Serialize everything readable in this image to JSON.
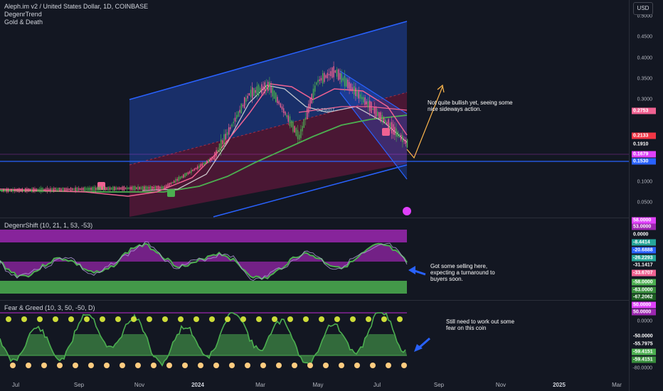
{
  "legend": {
    "symbol": "Aleph.im v2 / United States Dollar, 1D, COINBASE",
    "indicator1": "DegenrTrend",
    "indicator2": "Gold & Death",
    "pane2_title": "DegenrShift (10, 21, 1, 53, -53)",
    "pane3_title": "Fear & Greed (10, 3, 50, -50, D)"
  },
  "currency_button": "USD",
  "price_ticks": [
    "0.5000",
    "0.4500",
    "0.4000",
    "0.3500",
    "0.3000",
    "0.1000",
    "0.0500"
  ],
  "price_labels": [
    {
      "text": "0.2753",
      "color": "#f06292",
      "fg": "#ffffff"
    },
    {
      "text": "0.2133",
      "color": "#f23645",
      "fg": "#ffffff"
    },
    {
      "text": "0.1910",
      "color": "#131722",
      "fg": "#ffffff"
    },
    {
      "text": "0.1679",
      "color": "#e040fb",
      "fg": "#ffffff"
    },
    {
      "text": "0.1530",
      "color": "#2962ff",
      "fg": "#ffffff"
    }
  ],
  "shift_labels": [
    {
      "text": "58.0000",
      "color": "#e040fb",
      "fg": "#ffffff"
    },
    {
      "text": "53.0000",
      "color": "#9c27b0",
      "fg": "#ffffff"
    },
    {
      "text": "0.0000",
      "color": "#131722",
      "fg": "#ffffff"
    },
    {
      "text": "-8.4414",
      "color": "#26a69a",
      "fg": "#ffffff"
    },
    {
      "text": "-20.6888",
      "color": "#2962ff",
      "fg": "#ffffff"
    },
    {
      "text": "-26.2293",
      "color": "#26a69a",
      "fg": "#ffffff"
    },
    {
      "text": "-31.1417",
      "color": "#131722",
      "fg": "#ffffff"
    },
    {
      "text": "-33.6707",
      "color": "#f06292",
      "fg": "#ffffff"
    },
    {
      "text": "-58.0000",
      "color": "#4caf50",
      "fg": "#ffffff"
    },
    {
      "text": "-63.0000",
      "color": "#388e3c",
      "fg": "#ffffff"
    },
    {
      "text": "-67.2062",
      "color": "#1b5e20",
      "fg": "#ffffff"
    }
  ],
  "fg_labels": [
    {
      "text": "50.0000",
      "color": "#e040fb",
      "fg": "#ffffff"
    },
    {
      "text": "50.0000",
      "color": "#9c27b0",
      "fg": "#ffffff"
    },
    {
      "text": "-50.0000",
      "color": "#131722",
      "fg": "#ffffff"
    },
    {
      "text": "-55.7975",
      "color": "#131722",
      "fg": "#ffffff"
    },
    {
      "text": "-59.4151",
      "color": "#4caf50",
      "fg": "#ffffff"
    },
    {
      "text": "-59.4151",
      "color": "#388e3c",
      "fg": "#ffffff"
    }
  ],
  "fg_axis_ticks": [
    "0.0000",
    "-80.0000"
  ],
  "x_ticks": [
    {
      "label": "Jul",
      "bold": false
    },
    {
      "label": "Sep",
      "bold": false
    },
    {
      "label": "Nov",
      "bold": false
    },
    {
      "label": "2024",
      "bold": true
    },
    {
      "label": "Mar",
      "bold": false
    },
    {
      "label": "May",
      "bold": false
    },
    {
      "label": "Jul",
      "bold": false
    },
    {
      "label": "Sep",
      "bold": false
    },
    {
      "label": "Nov",
      "bold": false
    },
    {
      "label": "2025",
      "bold": true
    },
    {
      "label": "Mar",
      "bold": false
    }
  ],
  "channel_label": "0.29007",
  "notes": {
    "note1": "Not quite bullish yet, seeing some nice sideways action.",
    "note2": "Got some selling here, expecting a turnaround to buyers soon.",
    "note3": "Still need to work out some fear on this coin"
  },
  "colors": {
    "background": "#131722",
    "channel_blue": "#2962ff",
    "bull_green": "#4caf50",
    "bear_pink": "#f06292",
    "purple": "#9c27b0",
    "arrow_orange": "#ffb74d"
  }
}
